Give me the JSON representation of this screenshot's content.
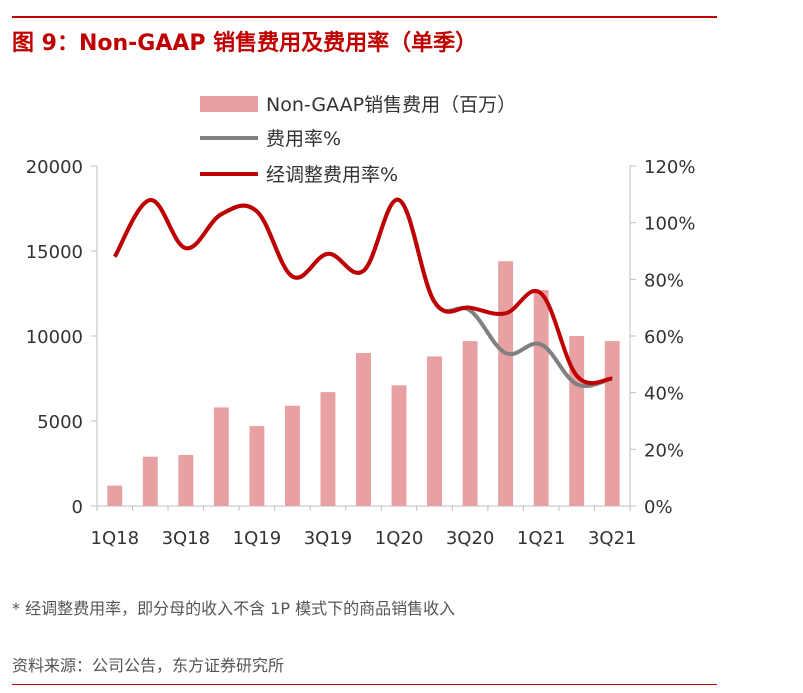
{
  "title": "图 9：Non-GAAP 销售费用及费用率（单季）",
  "footnote": "* 经调整费用率，即分母的收入不含 1P 模式下的商品销售收入",
  "source": "资料来源：公司公告，东方证券研究所",
  "colors": {
    "accent": "#c00000",
    "bar": "#e8a1a2",
    "gray_line": "#808080",
    "red_line": "#c00000"
  },
  "chart_data": {
    "type": "bar",
    "categories": [
      "1Q18",
      "2Q18",
      "3Q18",
      "4Q18",
      "1Q19",
      "2Q19",
      "3Q19",
      "4Q19",
      "1Q20",
      "2Q20",
      "3Q20",
      "4Q20",
      "1Q21",
      "2Q21",
      "3Q21"
    ],
    "x_tick_labels": [
      "1Q18",
      "3Q18",
      "1Q19",
      "3Q19",
      "1Q20",
      "3Q20",
      "1Q21",
      "3Q21"
    ],
    "y_left": {
      "lim": [
        0,
        20000
      ],
      "ticks": [
        "0",
        "5000",
        "10000",
        "15000",
        "20000"
      ]
    },
    "y_right": {
      "lim": [
        0,
        120
      ],
      "ticks": [
        "0%",
        "20%",
        "40%",
        "60%",
        "80%",
        "100%",
        "120%"
      ]
    },
    "series": [
      {
        "name": "Non-GAAP销售费用（百万）",
        "kind": "bar",
        "axis": "left",
        "values": [
          1200,
          2900,
          3000,
          5800,
          4700,
          5900,
          6700,
          9000,
          7100,
          8800,
          9700,
          14400,
          12700,
          10000,
          9700
        ]
      },
      {
        "name": "费用率%",
        "kind": "line",
        "axis": "right",
        "values": [
          88,
          108,
          91,
          103,
          104,
          81,
          89,
          83,
          108,
          72,
          69,
          54,
          57,
          43,
          45
        ]
      },
      {
        "name": "经调整费用率%",
        "kind": "line",
        "axis": "right",
        "values": [
          88,
          108,
          91,
          103,
          104,
          81,
          89,
          83,
          108,
          72,
          70,
          68,
          75,
          46,
          45
        ]
      }
    ]
  }
}
